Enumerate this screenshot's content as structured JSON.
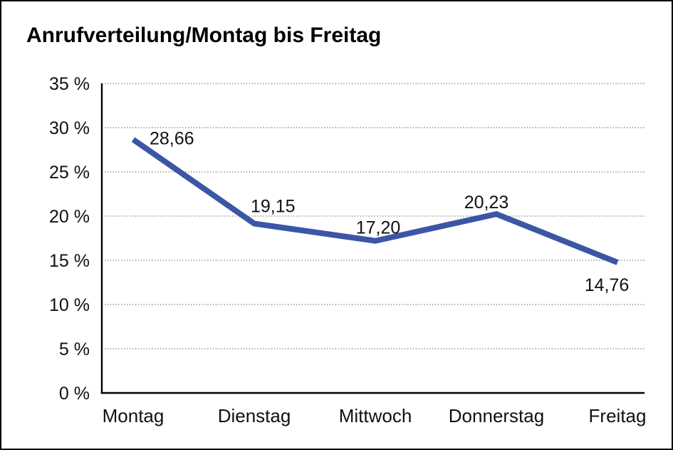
{
  "chart_data": {
    "type": "line",
    "title": "Anrufverteilung/Montag bis Freitag",
    "categories": [
      "Montag",
      "Dienstag",
      "Mittwoch",
      "Donnerstag",
      "Freitag"
    ],
    "values": [
      28.66,
      19.15,
      17.2,
      20.23,
      14.76
    ],
    "value_labels": [
      "28,66",
      "19,15",
      "17,20",
      "20,23",
      "14,76"
    ],
    "series_name": "Anrufverteilung",
    "xlabel": "",
    "ylabel": "",
    "ylim": [
      0,
      35
    ],
    "y_tick_step": 5,
    "y_tick_labels": [
      "0 %",
      "5 %",
      "10 %",
      "15 %",
      "20 %",
      "25 %",
      "30 %",
      "35 %"
    ],
    "grid": "dotted-horizontal",
    "legend": "none",
    "colors": {
      "line": "#3A56A5",
      "grid": "#4d4d4d",
      "axis": "#000000",
      "text": "#111111",
      "background": "#ffffff",
      "border": "#000000"
    }
  }
}
